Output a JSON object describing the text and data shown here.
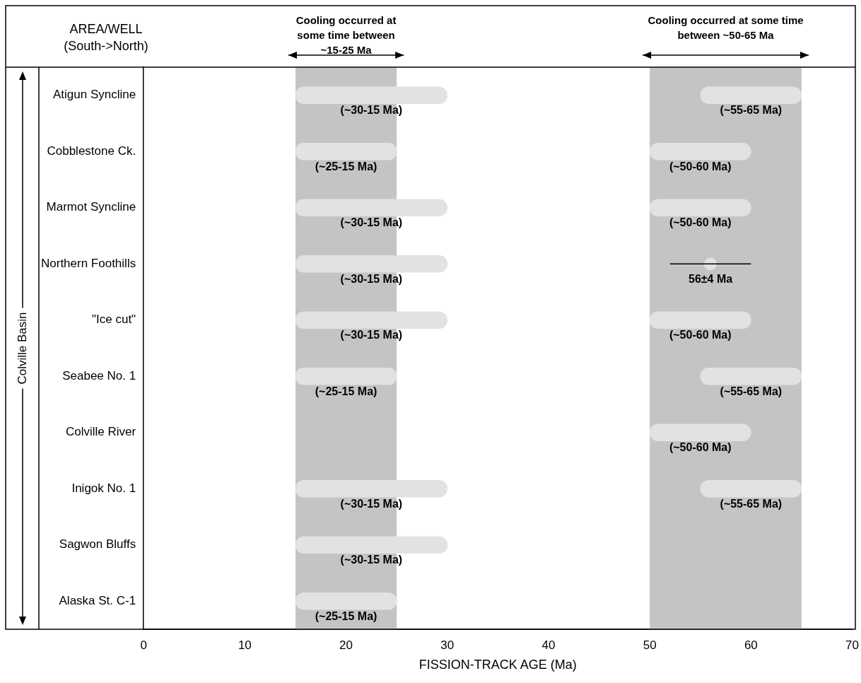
{
  "chart_data": {
    "type": "bar",
    "orientation": "horizontal",
    "ylabel": "AREA/WELL (South->North)",
    "xlabel": "FISSION-TRACK AGE (Ma)",
    "categories": [
      "Atigun Syncline",
      "Cobblestone Ck.",
      "Marmot Syncline",
      "Northern Foothills",
      "\"Ice cut\"",
      "Seabee No. 1",
      "Colville River",
      "Inigok No. 1",
      "Sagwon Bluffs",
      "Alaska St. C-1"
    ],
    "xlim": [
      0,
      70
    ],
    "xticks": [
      0,
      10,
      20,
      30,
      40,
      50,
      60,
      70
    ],
    "grid": false,
    "series": [
      {
        "color": "#e2e2e2",
        "base": [
          15,
          15,
          15,
          15,
          15,
          15,
          null,
          15,
          15,
          15
        ],
        "values": [
          15,
          10,
          15,
          15,
          15,
          10,
          null,
          15,
          15,
          10
        ],
        "value_labels": [
          "(~30-15 Ma)",
          "(~25-15 Ma)",
          "(~30-15 Ma)",
          "(~30-15 Ma)",
          "(~30-15 Ma)",
          "(~25-15 Ma)",
          null,
          "(~30-15 Ma)",
          "(~30-15 Ma)",
          "(~25-15 Ma)"
        ]
      },
      {
        "color": "#e2e2e2",
        "base": [
          55,
          50,
          50,
          null,
          50,
          55,
          50,
          55,
          null,
          null
        ],
        "values": [
          10,
          10,
          10,
          null,
          10,
          10,
          10,
          10,
          null,
          null
        ],
        "value_labels": [
          "(~55-65 Ma)",
          "(~50-60 Ma)",
          "(~50-60 Ma)",
          null,
          "(~50-60 Ma)",
          "(~55-65 Ma)",
          "(~50-60 Ma)",
          "(~55-65 Ma)",
          null,
          null
        ]
      },
      {
        "type": "scatter",
        "color": "#e2e2e2",
        "marker": "circle",
        "values": [
          null,
          null,
          null,
          56,
          null,
          null,
          null,
          null,
          null,
          null
        ],
        "errors": [
          null,
          null,
          null,
          4,
          null,
          null,
          null,
          null,
          null,
          null
        ],
        "value_labels": [
          null,
          null,
          null,
          "56±4 Ma",
          null,
          null,
          null,
          null,
          null,
          null
        ]
      }
    ],
    "bands": [
      {
        "axis": "x",
        "from": 15,
        "to": 25,
        "label": "Cooling occurred at some time between ~15-25 Ma",
        "color": "#c4c4c4"
      },
      {
        "axis": "x",
        "from": 50,
        "to": 65,
        "label": "Cooling occurred at some time between ~50-65 Ma",
        "color": "#c4c4c4"
      }
    ],
    "annotations": [
      "Colville Basin"
    ]
  }
}
